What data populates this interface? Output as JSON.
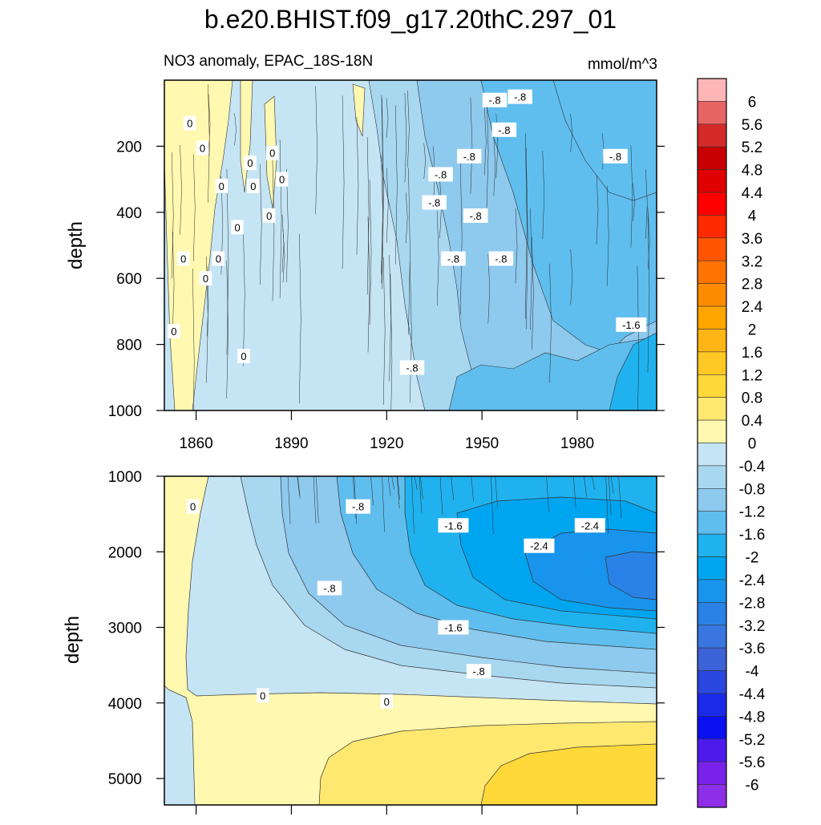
{
  "chart_data": {
    "type": "heatmap",
    "title": "b.e20.BHIST.f09_g17.20thC.297_01",
    "subtitle_left": "NO3 anomaly, EPAC_18S-18N",
    "units": "mmol/m^3",
    "xlabel": "",
    "ylabel_top": "depth",
    "ylabel_bottom": "depth",
    "x_range": [
      1850,
      2005
    ],
    "x_ticks": [
      1860,
      1890,
      1920,
      1950,
      1980
    ],
    "top_panel": {
      "ylim": [
        0,
        1000
      ],
      "y_ticks": [
        200,
        400,
        600,
        800,
        1000
      ],
      "contour_labels": [
        {
          "text": "0",
          "year": 1858,
          "depth": 130
        },
        {
          "text": "0",
          "year": 1862,
          "depth": 205
        },
        {
          "text": "0",
          "year": 1877,
          "depth": 250
        },
        {
          "text": "0",
          "year": 1884,
          "depth": 220
        },
        {
          "text": "0",
          "year": 1868,
          "depth": 320
        },
        {
          "text": "0",
          "year": 1878,
          "depth": 320
        },
        {
          "text": "0",
          "year": 1887,
          "depth": 300
        },
        {
          "text": "0",
          "year": 1883,
          "depth": 410
        },
        {
          "text": "0",
          "year": 1873,
          "depth": 445
        },
        {
          "text": "0",
          "year": 1856,
          "depth": 540
        },
        {
          "text": "0",
          "year": 1867,
          "depth": 540
        },
        {
          "text": "0",
          "year": 1863,
          "depth": 600
        },
        {
          "text": "0",
          "year": 1853,
          "depth": 760
        },
        {
          "text": "0",
          "year": 1875,
          "depth": 835
        },
        {
          "text": "-.8",
          "year": 1954,
          "depth": 60
        },
        {
          "text": "-.8",
          "year": 1962,
          "depth": 50
        },
        {
          "text": "-.8",
          "year": 1957,
          "depth": 150
        },
        {
          "text": "-.8",
          "year": 1946,
          "depth": 230
        },
        {
          "text": "-.8",
          "year": 1992,
          "depth": 230
        },
        {
          "text": "-.8",
          "year": 1937,
          "depth": 285
        },
        {
          "text": "-.8",
          "year": 1935,
          "depth": 370
        },
        {
          "text": "-.8",
          "year": 1948,
          "depth": 410
        },
        {
          "text": "-.8",
          "year": 1941,
          "depth": 540
        },
        {
          "text": "-.8",
          "year": 1956,
          "depth": 540
        },
        {
          "text": "-.8",
          "year": 1928,
          "depth": 870
        },
        {
          "text": "-1.6",
          "year": 1997,
          "depth": 740
        }
      ]
    },
    "bottom_panel": {
      "ylim": [
        1000,
        5350
      ],
      "y_ticks": [
        1000,
        2000,
        3000,
        4000,
        5000
      ],
      "contour_labels": [
        {
          "text": "0",
          "year": 1859,
          "depth": 1400
        },
        {
          "text": "-.8",
          "year": 1911,
          "depth": 1400
        },
        {
          "text": "-1.6",
          "year": 1941,
          "depth": 1650
        },
        {
          "text": "-2.4",
          "year": 1984,
          "depth": 1650
        },
        {
          "text": "-2.4",
          "year": 1968,
          "depth": 1920
        },
        {
          "text": "-.8",
          "year": 1902,
          "depth": 2480
        },
        {
          "text": "-1.6",
          "year": 1941,
          "depth": 3000
        },
        {
          "text": "-.8",
          "year": 1949,
          "depth": 3580
        },
        {
          "text": "0",
          "year": 1881,
          "depth": 3900
        },
        {
          "text": "0",
          "year": 1920,
          "depth": 3980
        }
      ]
    },
    "colorbar": {
      "levels": [
        "6",
        "5.6",
        "5.2",
        "4.8",
        "4.4",
        "4",
        "3.6",
        "3.2",
        "2.8",
        "2.4",
        "2",
        "1.6",
        "1.2",
        "0.8",
        "0.4",
        "0",
        "-0.4",
        "-0.8",
        "-1.2",
        "-1.6",
        "-2",
        "-2.4",
        "-2.8",
        "-3.2",
        "-3.6",
        "-4",
        "-4.4",
        "-4.8",
        "-5.2",
        "-5.6",
        "-6"
      ],
      "colors": [
        "#fdb5b5",
        "#e86565",
        "#d42a2a",
        "#c80000",
        "#e00000",
        "#ff0000",
        "#ff2a00",
        "#ff5500",
        "#ff7300",
        "#ff8c00",
        "#ffa500",
        "#ffb515",
        "#ffc825",
        "#ffd83a",
        "#ffe870",
        "#fff8b0",
        "#c5e5f5",
        "#a8d8f0",
        "#8ec9ee",
        "#5fbeee",
        "#20b2ee",
        "#00a5f0",
        "#1894ec",
        "#2a82e6",
        "#3a76e0",
        "#3c62d8",
        "#2a48e0",
        "#1a2ae8",
        "#0a10f0",
        "#4d1aee",
        "#7a22ea",
        "#8e2ee6"
      ]
    }
  }
}
